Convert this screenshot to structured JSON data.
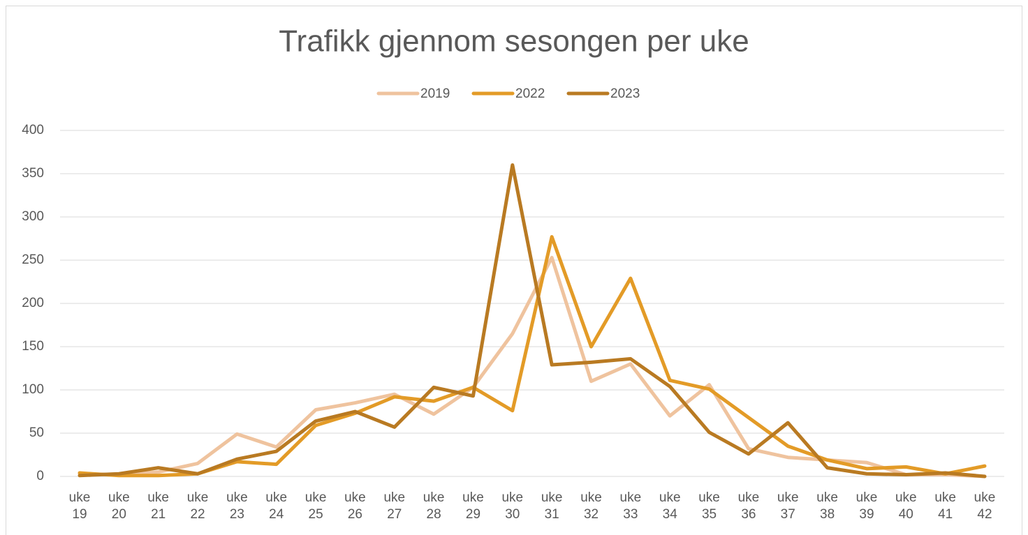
{
  "chart_data": {
    "type": "line",
    "title": "Trafikk gjennom sesongen per uke",
    "categories": [
      "uke 19",
      "uke 20",
      "uke 21",
      "uke 22",
      "uke 23",
      "uke 24",
      "uke 25",
      "uke 26",
      "uke 27",
      "uke 28",
      "uke 29",
      "uke 30",
      "uke 31",
      "uke 32",
      "uke 33",
      "uke 34",
      "uke 35",
      "uke 36",
      "uke 37",
      "uke 38",
      "uke 39",
      "uke 40",
      "uke 41",
      "uke 42"
    ],
    "series": [
      {
        "name": "2019",
        "color": "#efc39e",
        "values": [
          3,
          2,
          5,
          15,
          49,
          34,
          77,
          85,
          95,
          72,
          103,
          165,
          253,
          110,
          130,
          70,
          106,
          32,
          22,
          19,
          16,
          2,
          2,
          0
        ]
      },
      {
        "name": "2022",
        "color": "#e39b27",
        "values": [
          4,
          1,
          1,
          3,
          17,
          14,
          59,
          73,
          92,
          87,
          103,
          76,
          277,
          150,
          229,
          111,
          101,
          68,
          35,
          19,
          9,
          11,
          3,
          12
        ]
      },
      {
        "name": "2023",
        "color": "#b97a22",
        "values": [
          1,
          3,
          10,
          3,
          20,
          29,
          64,
          75,
          57,
          103,
          93,
          360,
          129,
          132,
          136,
          104,
          51,
          26,
          62,
          10,
          3,
          2,
          4,
          0
        ]
      }
    ],
    "ylim": [
      0,
      400
    ],
    "yticks": [
      0,
      50,
      100,
      150,
      200,
      250,
      300,
      350,
      400
    ],
    "grid": true,
    "legend": "top"
  }
}
